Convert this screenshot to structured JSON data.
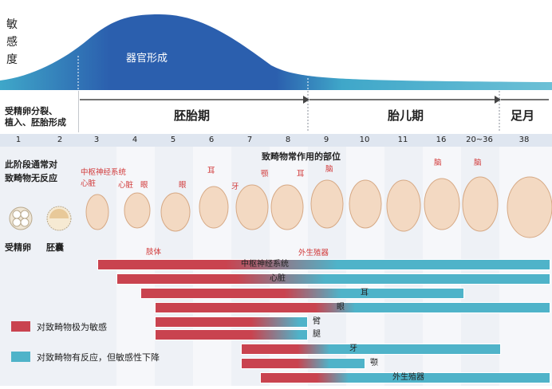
{
  "sensitivity_label": [
    "敏",
    "感",
    "度"
  ],
  "curve_label": "器官形成",
  "stages": {
    "pre": [
      "受精卵分裂、",
      "植入、胚胎形成"
    ],
    "embryo": "胚胎期",
    "fetal": "胎儿期",
    "fullterm": "足月"
  },
  "weeks": [
    "1",
    "2",
    "3",
    "4",
    "5",
    "6",
    "7",
    "8",
    "9",
    "10",
    "11",
    "16",
    "20~36",
    "38"
  ],
  "no_response": [
    "此阶段通常对",
    "致畸物无反应"
  ],
  "affected_title": "致畸物常作用的部位",
  "organ_labels": {
    "cns": "中枢神经系统",
    "heart1": "心脏",
    "heart2": "心脏",
    "eye1": "眼",
    "eye2": "眼",
    "ear1": "耳",
    "ear2": "耳",
    "teeth": "牙",
    "palate": "颚",
    "limbs": "肢体",
    "brain1": "脑",
    "brain2": "脑",
    "brain3": "脑",
    "genitalia": "外生殖器"
  },
  "early_labels": {
    "zygote": "受精卵",
    "blastocyst": "胚囊"
  },
  "bars": [
    {
      "label": "中枢神经系统"
    },
    {
      "label": "心脏"
    },
    {
      "label": "耳"
    },
    {
      "label": "眼"
    },
    {
      "label": "臂"
    },
    {
      "label": "腿"
    },
    {
      "label": "牙"
    },
    {
      "label": "颚"
    },
    {
      "label": "外生殖器"
    }
  ],
  "legend": {
    "high": "对致畸物极为敏感",
    "low": "对致畸物有反应，但敏感性下降"
  },
  "colors": {
    "sensitive": "#c9434f",
    "reduced": "#4fb3c9",
    "curve_top": "#2b5fae",
    "curve_bottom": "#3fa7c9"
  }
}
